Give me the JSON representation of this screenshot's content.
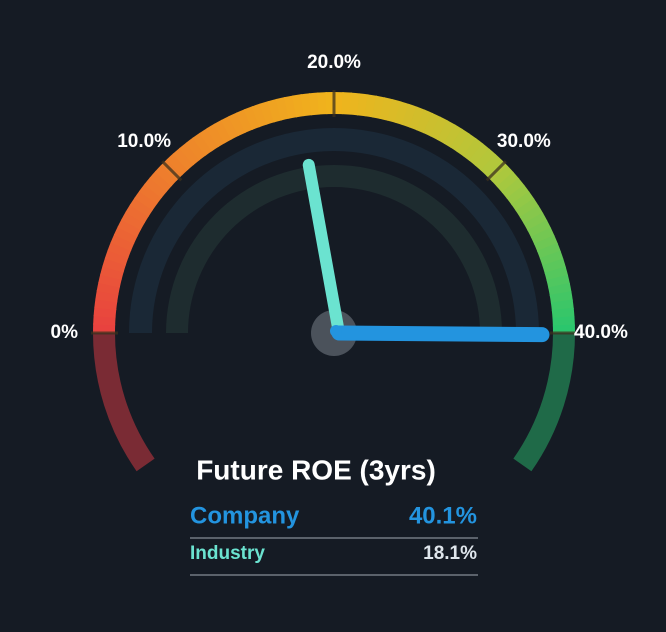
{
  "chart_data": {
    "type": "gauge",
    "title": "Future ROE (3yrs)",
    "ylim": [
      0,
      40
    ],
    "yticks": [
      {
        "value": 0,
        "label": "0%"
      },
      {
        "value": 10,
        "label": "10.0%"
      },
      {
        "value": 20,
        "label": "20.0%"
      },
      {
        "value": 30,
        "label": "30.0%"
      },
      {
        "value": 40,
        "label": "40.0%"
      }
    ],
    "series": [
      {
        "name": "Company",
        "color": "#2394df",
        "values": [
          40.1
        ],
        "value_labels": [
          "40.1%"
        ]
      },
      {
        "name": "Industry",
        "color": "#6be3d0",
        "values": [
          18.1
        ],
        "value_labels": [
          "18.1%"
        ]
      }
    ]
  }
}
